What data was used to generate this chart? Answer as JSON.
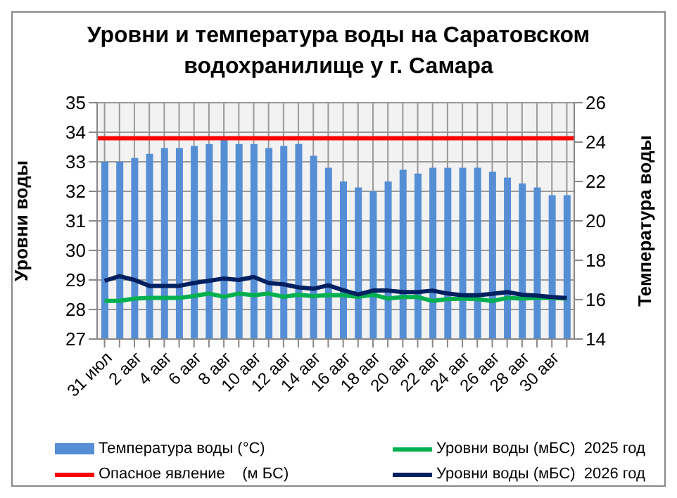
{
  "chart_data": {
    "type": "bar",
    "title": "Уровни и температура  воды на Саратовском водохранилище у  г. Самара",
    "categories": [
      "31 июл",
      null,
      "2 авг",
      null,
      "4 авг",
      null,
      "6 авг",
      null,
      "8 авг",
      null,
      "10 авг",
      null,
      "12 авг",
      null,
      "14 авг",
      null,
      "16 авг",
      null,
      "18 авг",
      null,
      "20 авг",
      null,
      "22 авг",
      null,
      "24 авг",
      null,
      "26 авг",
      null,
      "28 авг",
      null,
      "30 авг",
      null
    ],
    "series": [
      {
        "name": "Температура воды (°С)",
        "axis": "y2",
        "color": "#558ed5",
        "values": [
          23.0,
          23.0,
          23.2,
          23.4,
          23.7,
          23.7,
          23.8,
          23.9,
          24.1,
          23.9,
          23.9,
          23.7,
          23.8,
          23.9,
          23.3,
          22.7,
          22.0,
          21.7,
          21.5,
          22.0,
          22.6,
          22.4,
          22.7,
          22.7,
          22.7,
          22.7,
          22.5,
          22.2,
          21.9,
          21.7,
          21.3,
          21.3
        ]
      },
      {
        "name": "Уровни воды (мБС)  2025 год",
        "type": "line",
        "axis": "y",
        "color": "#00b050",
        "values": [
          28.29,
          28.29,
          28.37,
          28.39,
          28.39,
          28.39,
          28.46,
          28.54,
          28.43,
          28.54,
          28.48,
          28.54,
          28.43,
          28.5,
          28.45,
          28.49,
          28.48,
          28.43,
          28.5,
          28.37,
          28.42,
          28.42,
          28.29,
          28.35,
          28.37,
          28.35,
          28.29,
          28.39,
          28.37,
          28.39,
          28.39,
          28.37
        ]
      },
      {
        "name": "Уровни воды (мБС)  2026 год",
        "type": "line",
        "axis": "y",
        "color": "#002060",
        "values": [
          28.97,
          29.13,
          29.0,
          28.8,
          28.8,
          28.8,
          28.9,
          28.97,
          29.05,
          29.0,
          29.1,
          28.9,
          28.85,
          28.75,
          28.7,
          28.82,
          28.65,
          28.51,
          28.64,
          28.64,
          28.59,
          28.59,
          28.64,
          28.54,
          28.48,
          28.48,
          28.53,
          28.59,
          28.5,
          28.47,
          28.42,
          28.39
        ]
      }
    ],
    "ylabel": "Уровни воды",
    "y2label": "Температура воды",
    "ylim": [
      27,
      35
    ],
    "yticks": [
      27,
      28,
      29,
      30,
      31,
      32,
      33,
      34,
      35
    ],
    "y2lim": [
      14,
      26
    ],
    "y2ticks": [
      14,
      16,
      18,
      20,
      22,
      24,
      26
    ],
    "ref_lines": [
      {
        "axis": "y",
        "value": 33.8,
        "label": "Опасное явление    (м БС)",
        "color": "#ff0000"
      }
    ],
    "grid": true,
    "legend": "bottom",
    "marker": "none",
    "line_style": "solid"
  }
}
